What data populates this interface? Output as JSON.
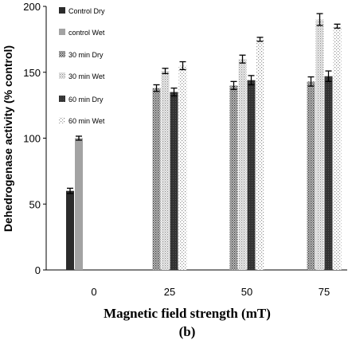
{
  "chart_data": {
    "type": "bar",
    "xlabel": "Magnetic field strength (mT)",
    "ylabel": "Dehedrogenase activity (% control)",
    "caption": "(b)",
    "categories": [
      "0",
      "25",
      "50",
      "75"
    ],
    "ylim": [
      0,
      200
    ],
    "yticks": [
      "0",
      "50",
      "100",
      "150",
      "200"
    ],
    "grid": false,
    "legend_position": "top-left",
    "series": [
      {
        "name": "Control Dry",
        "values": [
          60,
          null,
          null,
          null
        ],
        "errors": [
          2,
          null,
          null,
          null
        ],
        "pattern": "solid-dark"
      },
      {
        "name": "control Wet",
        "values": [
          100,
          null,
          null,
          null
        ],
        "errors": [
          1.5,
          null,
          null,
          null
        ],
        "pattern": "solid-light"
      },
      {
        "name": "30 min Dry",
        "values": [
          null,
          138,
          140,
          143
        ],
        "errors": [
          null,
          2.5,
          3,
          3.5
        ],
        "pattern": "dots-dense"
      },
      {
        "name": "30 min Wet",
        "values": [
          null,
          151,
          160,
          190
        ],
        "errors": [
          null,
          2,
          3,
          4.5
        ],
        "pattern": "dots-light"
      },
      {
        "name": "60 min Dry",
        "values": [
          null,
          135,
          144,
          147
        ],
        "errors": [
          null,
          3,
          3.5,
          4
        ],
        "pattern": "solid-dark-dotted"
      },
      {
        "name": "60 min Wet",
        "values": [
          null,
          155,
          175,
          185
        ],
        "errors": [
          null,
          3,
          1.5,
          1.5
        ],
        "pattern": "dots-sparse"
      }
    ]
  },
  "colors": {
    "dark": "#2b2b2b",
    "light": "#a3a3a3",
    "axis": "#000000"
  }
}
